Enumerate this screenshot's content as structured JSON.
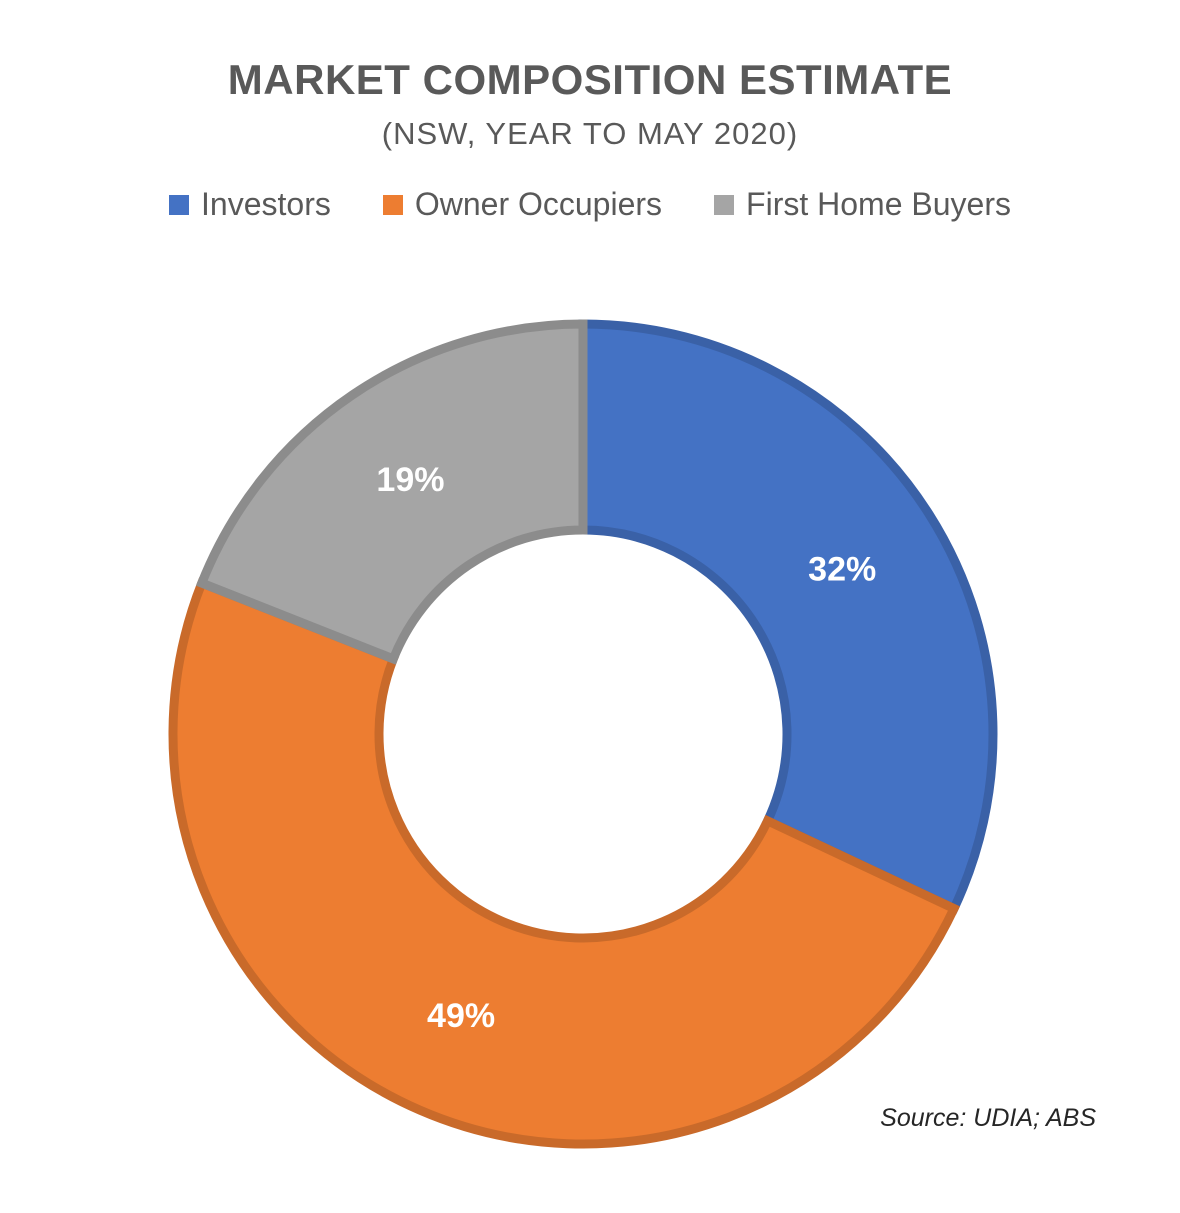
{
  "chart_data": {
    "type": "pie",
    "variant": "donut",
    "title": "MARKET COMPOSITION ESTIMATE",
    "subtitle": "(NSW, YEAR TO MAY 2020)",
    "legend_position": "top",
    "categories": [
      "Investors",
      "Owner Occupiers",
      "First Home Buyers"
    ],
    "values": [
      32,
      49,
      19
    ],
    "labels": [
      "32%",
      "49%",
      "19%"
    ],
    "colors": [
      "#4472C4",
      "#ED7D31",
      "#A5A5A5"
    ],
    "source": "Source: UDIA; ABS"
  }
}
